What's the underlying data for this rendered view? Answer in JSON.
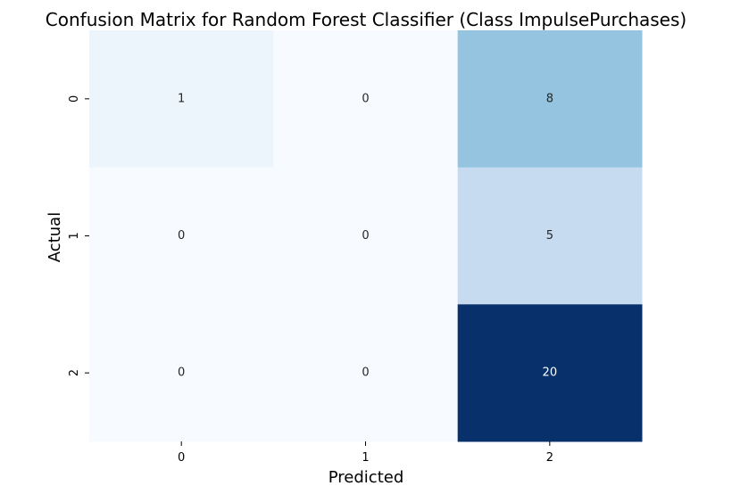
{
  "chart_data": {
    "type": "heatmap",
    "title": "Confusion Matrix for Random Forest Classifier (Class ImpulsePurchases)",
    "xlabel": "Predicted",
    "ylabel": "Actual",
    "x_categories": [
      "0",
      "1",
      "2"
    ],
    "y_categories": [
      "0",
      "1",
      "2"
    ],
    "matrix": [
      [
        1,
        0,
        8
      ],
      [
        0,
        0,
        5
      ],
      [
        0,
        0,
        20
      ]
    ],
    "colormap": "Blues",
    "value_range": [
      0,
      20
    ],
    "colorbar": false,
    "annotations": true
  }
}
